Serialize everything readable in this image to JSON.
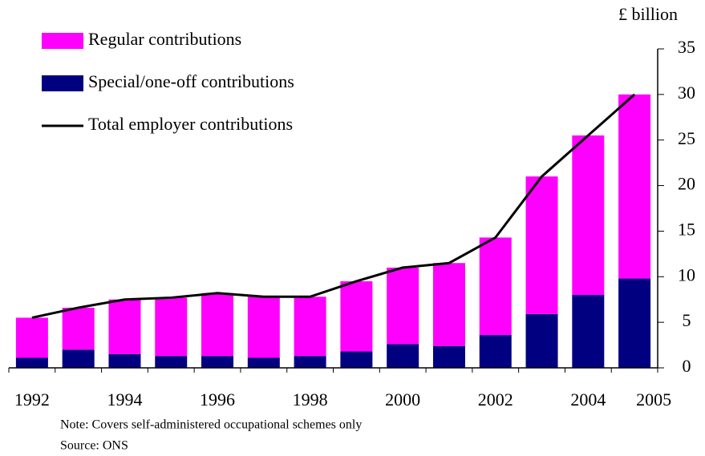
{
  "chart_data": {
    "type": "bar",
    "stacked": true,
    "y_label": "£ billion",
    "categories": [
      "1992",
      null,
      "1994",
      null,
      "1996",
      null,
      "1998",
      null,
      "2000",
      null,
      "2002",
      null,
      "2004",
      "2005"
    ],
    "series": [
      {
        "name": "Regular contributions",
        "color": "#ff00ff",
        "values": [
          4.4,
          4.6,
          6.0,
          6.4,
          6.9,
          6.7,
          6.5,
          7.7,
          8.4,
          9.1,
          10.7,
          15.1,
          17.5,
          20.2
        ]
      },
      {
        "name": "Special/one-off contributions",
        "color": "#000080",
        "values": [
          1.1,
          2.0,
          1.5,
          1.3,
          1.3,
          1.1,
          1.3,
          1.8,
          2.6,
          2.4,
          3.6,
          5.9,
          8.0,
          9.8
        ]
      },
      {
        "name": "Total employer contributions",
        "type": "line",
        "color": "#000000",
        "values": [
          5.5,
          6.6,
          7.5,
          7.7,
          8.2,
          7.8,
          7.8,
          9.5,
          11.0,
          11.5,
          14.3,
          21.0,
          25.5,
          30.0
        ]
      }
    ],
    "ylim": [
      0,
      35
    ],
    "yticks": [
      0,
      5,
      10,
      15,
      20,
      25,
      30,
      35
    ],
    "legend": "top-left",
    "notes": [
      "Note: Covers self-administered occupational schemes only",
      "Source: ONS"
    ]
  }
}
